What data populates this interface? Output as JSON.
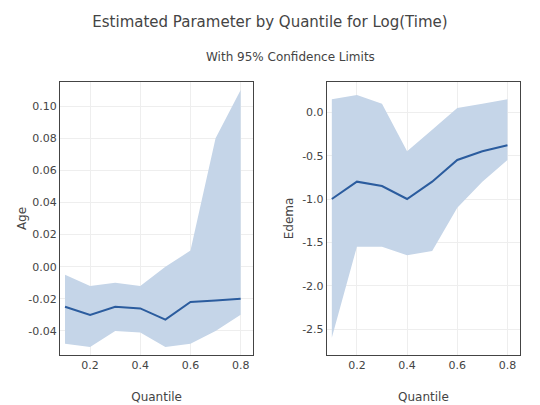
{
  "chart_data": [
    {
      "type": "line",
      "title": "Estimated Parameter by Quantile for Log(Time)",
      "subtitle": "With 95% Confidence Limits",
      "x": [
        0.1,
        0.2,
        0.3,
        0.4,
        0.5,
        0.6,
        0.7,
        0.8
      ],
      "series": [
        {
          "type": "band",
          "color": "#c5d5e8",
          "lower": [
            -0.048,
            -0.05,
            -0.04,
            -0.041,
            -0.05,
            -0.048,
            -0.04,
            -0.03
          ],
          "upper": [
            -0.005,
            -0.012,
            -0.01,
            -0.012,
            0.0,
            0.01,
            0.08,
            0.11
          ]
        },
        {
          "type": "line",
          "color": "#2b5c9e",
          "values": [
            -0.025,
            -0.03,
            -0.025,
            -0.026,
            -0.033,
            -0.022,
            -0.021,
            -0.02
          ]
        }
      ],
      "xlabel": "Quantile",
      "ylabel": "Age",
      "xlim": [
        0.08,
        0.85
      ],
      "xticks": [
        0.2,
        0.4,
        0.6,
        0.8
      ],
      "ylim": [
        -0.055,
        0.115
      ],
      "yticks": [
        {
          "value": 0.1,
          "label": "0.10"
        },
        0.08,
        0.06,
        0.04,
        0.02,
        {
          "value": 0.0,
          "label": "0.00"
        },
        -0.02,
        -0.04
      ],
      "grid": true
    },
    {
      "type": "line",
      "x": [
        0.1,
        0.2,
        0.3,
        0.4,
        0.5,
        0.6,
        0.7,
        0.8
      ],
      "series": [
        {
          "type": "band",
          "color": "#c5d5e8",
          "lower": [
            -2.6,
            -1.55,
            -1.55,
            -1.65,
            -1.6,
            -1.1,
            -0.8,
            -0.55
          ],
          "upper": [
            0.15,
            0.2,
            0.1,
            -0.45,
            -0.2,
            0.05,
            0.1,
            0.15
          ]
        },
        {
          "type": "line",
          "color": "#2b5c9e",
          "values": [
            -1.0,
            -0.8,
            -0.85,
            -1.0,
            -0.8,
            -0.55,
            -0.45,
            -0.38
          ]
        }
      ],
      "xlabel": "Quantile",
      "ylabel": "Edema",
      "xlim": [
        0.08,
        0.85
      ],
      "xticks": [
        0.2,
        0.4,
        0.6,
        0.8
      ],
      "ylim": [
        -2.8,
        0.35
      ],
      "yticks": [
        {
          "value": 0.0,
          "label": "0.0"
        },
        -0.5,
        {
          "value": -1.0,
          "label": "-1.0"
        },
        -1.5,
        {
          "value": -2.0,
          "label": "-2.0"
        },
        -2.5
      ],
      "grid": true
    }
  ]
}
